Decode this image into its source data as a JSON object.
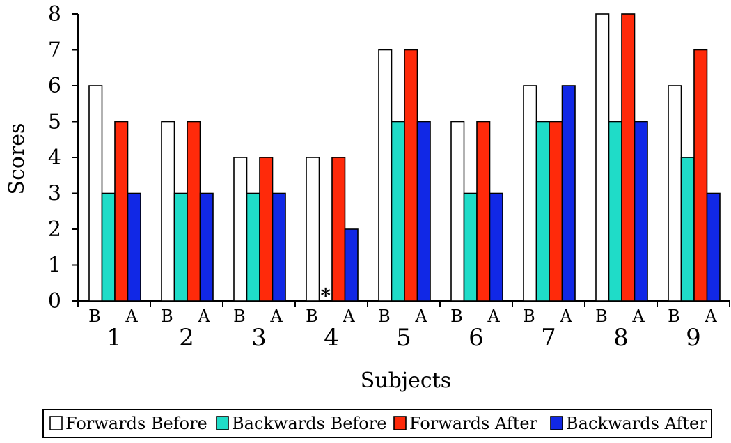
{
  "chart_data": {
    "type": "bar",
    "title": "",
    "xlabel": "Subjects",
    "ylabel": "Scores",
    "ylim": [
      0,
      8
    ],
    "yticks": [
      0,
      1,
      2,
      3,
      4,
      5,
      6,
      7,
      8
    ],
    "categories": [
      "1",
      "2",
      "3",
      "4",
      "5",
      "6",
      "7",
      "8",
      "9"
    ],
    "sub_labels": [
      "B",
      "A"
    ],
    "series": [
      {
        "name": "Forwards Before",
        "color": "#ffffff",
        "values": [
          6,
          5,
          4,
          4,
          7,
          5,
          6,
          8,
          6
        ]
      },
      {
        "name": "Backwards Before",
        "color": "#1fdcc8",
        "values": [
          3,
          3,
          3,
          0,
          5,
          3,
          5,
          5,
          4
        ]
      },
      {
        "name": "Forwards After",
        "color": "#ff2a0a",
        "values": [
          5,
          5,
          4,
          4,
          7,
          5,
          5,
          8,
          7
        ]
      },
      {
        "name": "Backwards After",
        "color": "#1128e6",
        "values": [
          3,
          3,
          3,
          2,
          5,
          3,
          6,
          5,
          3
        ]
      }
    ],
    "annotations": [
      {
        "category": "4",
        "series": "Backwards Before",
        "text": "*"
      }
    ],
    "grid": false,
    "legend_position": "bottom"
  }
}
